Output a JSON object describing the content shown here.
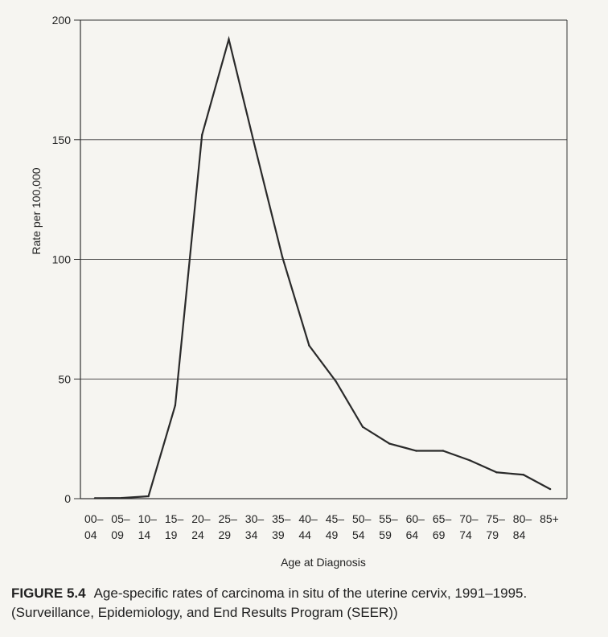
{
  "chart_data": {
    "type": "line",
    "categories": [
      "00–\n04",
      "05–\n09",
      "10–\n14",
      "15–\n19",
      "20–\n24",
      "25–\n29",
      "30–\n34",
      "35–\n39",
      "40–\n44",
      "45–\n49",
      "50–\n54",
      "55–\n59",
      "60–\n64",
      "65–\n69",
      "70–\n74",
      "75–\n79",
      "80–\n84",
      "85+"
    ],
    "values": [
      0.2,
      0.3,
      1,
      39,
      152,
      192,
      146,
      101,
      64,
      49,
      30,
      23,
      20,
      20,
      16,
      11,
      10,
      4
    ],
    "xlabel": "Age at Diagnosis",
    "ylabel": "Rate per 100,000",
    "ylim": [
      0,
      200
    ],
    "yticks": [
      0,
      50,
      100,
      150,
      200
    ],
    "grid": true,
    "colors": {
      "line": "#2a2a2a",
      "grid": "#555555",
      "background": "#f6f5f1"
    }
  },
  "caption": {
    "label": "FIGURE 5.4",
    "text": "Age-specific rates of carcinoma in situ of the uterine cervix, 1991–1995. (Surveillance, Epidemiology, and End Results Program (SEER))"
  }
}
